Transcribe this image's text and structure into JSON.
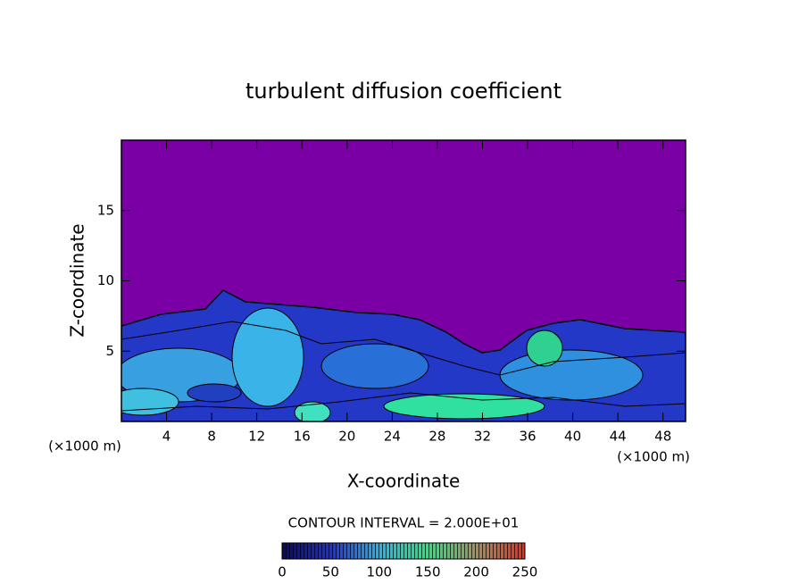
{
  "chart_data": {
    "type": "contour",
    "title": "turbulent diffusion coefficient",
    "xlabel": "X-coordinate",
    "ylabel": "Z-coordinate",
    "x_unit_label": "(×1000 m)",
    "y_unit_label": "(×1000 m)",
    "xlim": [
      0,
      50
    ],
    "ylim": [
      0,
      20
    ],
    "xticks": [
      4,
      8,
      12,
      16,
      20,
      24,
      28,
      32,
      36,
      40,
      44,
      48
    ],
    "yticks": [
      5,
      10,
      15
    ],
    "contour_interval_label": "CONTOUR INTERVAL = 2.000E+01",
    "colorbar": {
      "lim": [
        0,
        250
      ],
      "ticks": [
        0,
        50,
        100,
        150,
        200,
        250
      ]
    }
  }
}
